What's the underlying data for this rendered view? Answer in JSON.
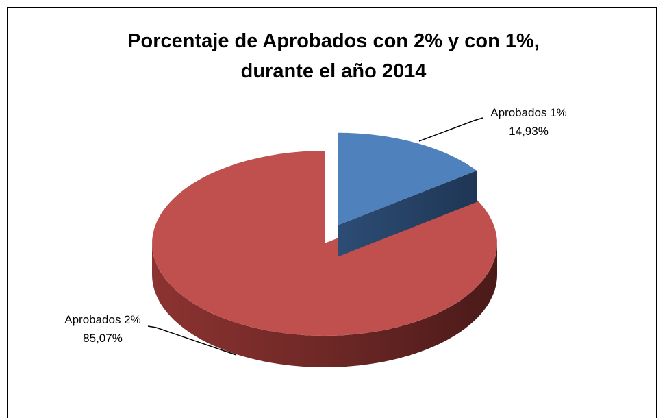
{
  "chart_data": {
    "type": "pie",
    "title": "Porcentaje de Aprobados con 2% y con 1%, durante el año 2014",
    "categories": [
      "Aprobados 1%",
      "Aprobados 2%"
    ],
    "values": [
      14.93,
      85.07
    ],
    "value_labels": [
      "14,93%",
      "85,07%"
    ],
    "colors": [
      "#4f81bd",
      "#c0504d"
    ],
    "explode": [
      true,
      false
    ]
  }
}
